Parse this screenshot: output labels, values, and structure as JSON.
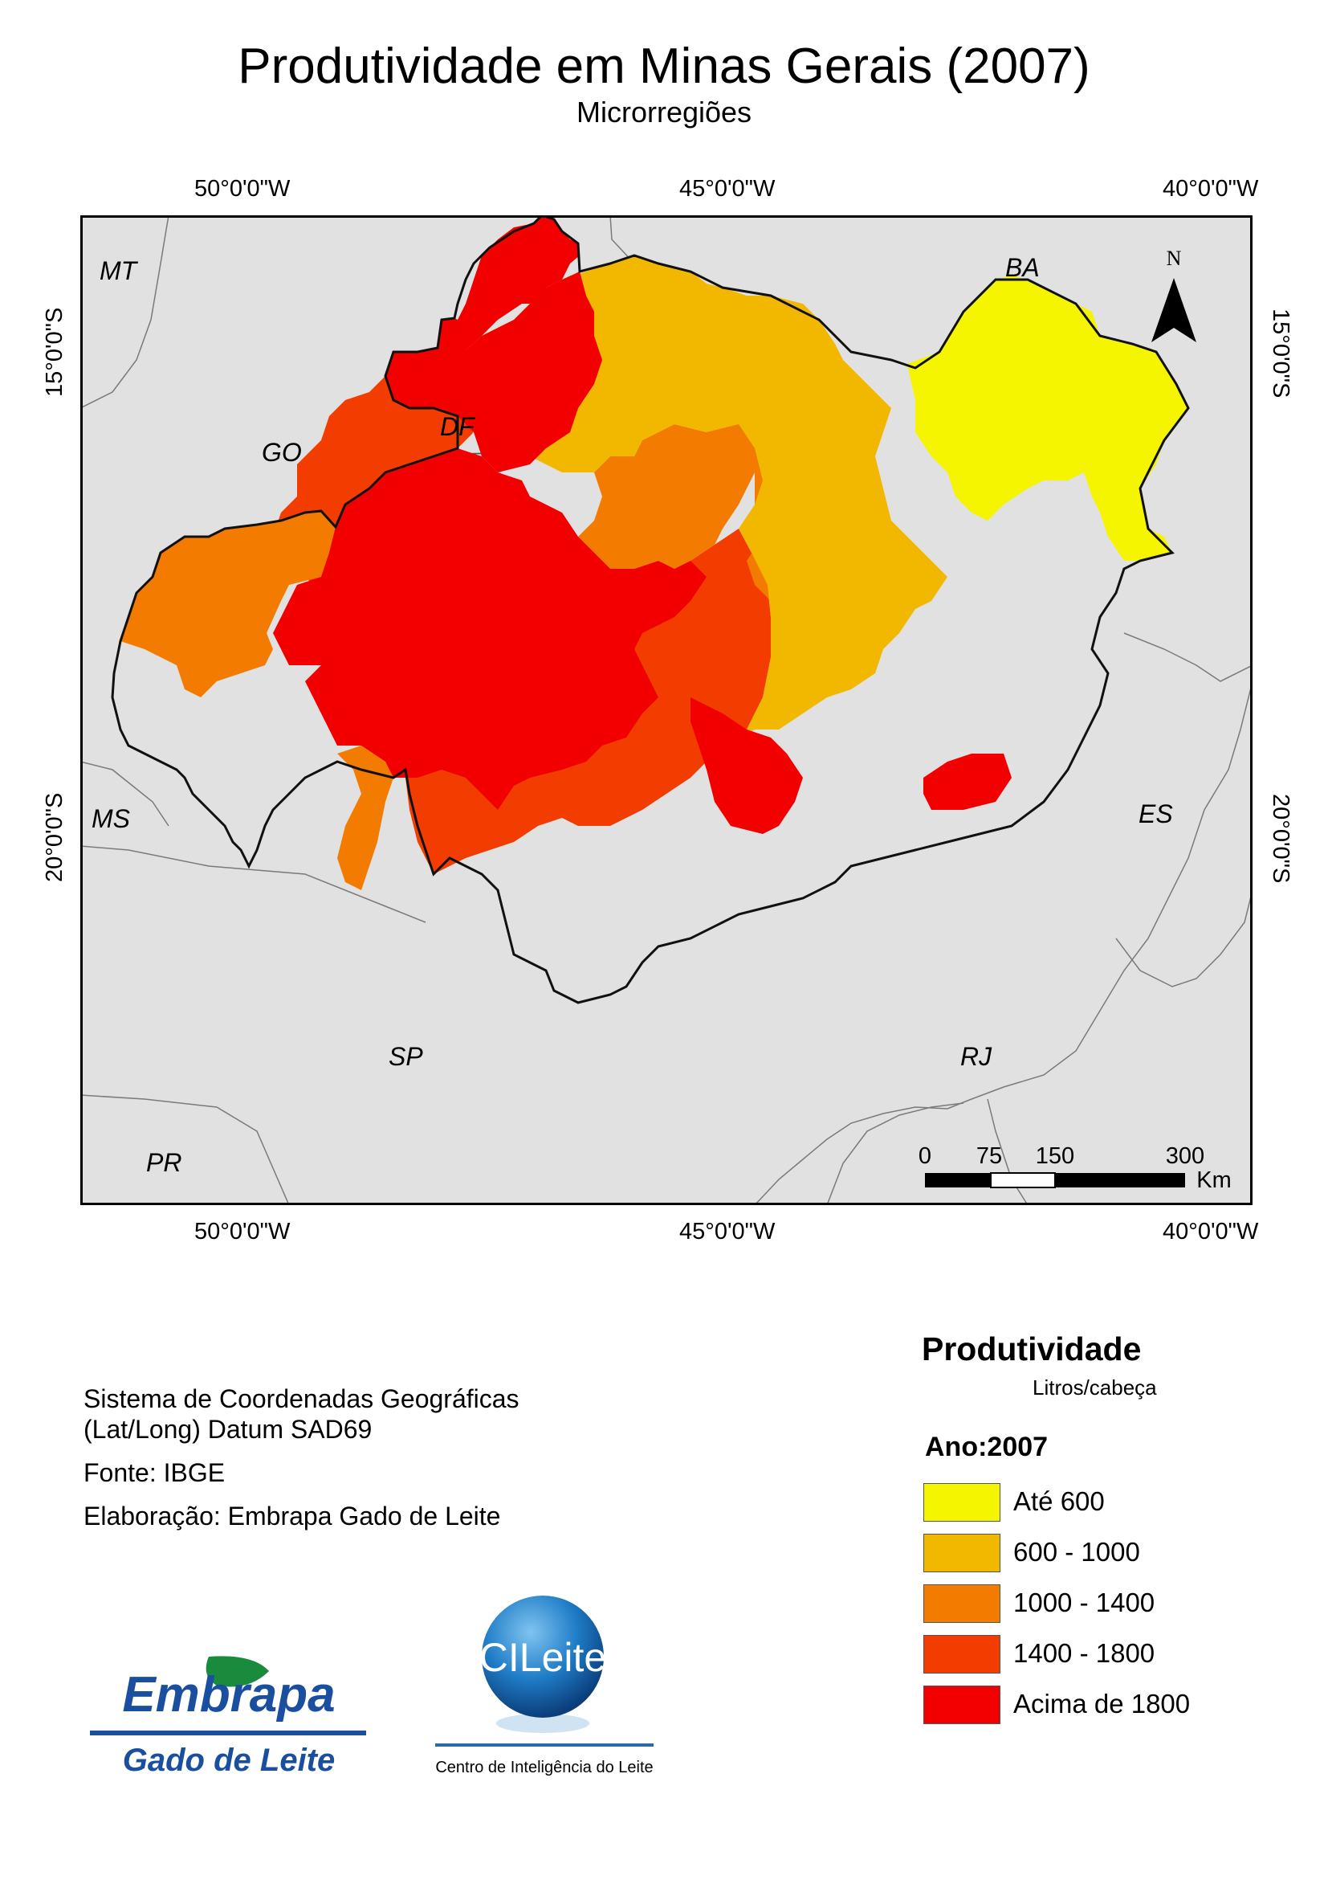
{
  "title": "Produtividade em Minas Gerais (2007)",
  "subtitle": "Microrregiões",
  "grid": {
    "longitudes": [
      "50°0'0\"W",
      "45°0'0\"W",
      "40°0'0\"W"
    ],
    "latitudes": [
      "15°0'0\"S",
      "20°0'0\"S"
    ]
  },
  "states": {
    "mt": "MT",
    "go": "GO",
    "df": "DF",
    "ba": "BA",
    "ms": "MS",
    "es": "ES",
    "sp": "SP",
    "rj": "RJ",
    "pr": "PR"
  },
  "north_label": "N",
  "scalebar": {
    "ticks": [
      "0",
      "75",
      "150",
      "300"
    ],
    "unit": "Km"
  },
  "info": {
    "coords_line1": "Sistema de Coordenadas Geográficas",
    "coords_line2": "(Lat/Long) Datum SAD69",
    "source": "Fonte: IBGE",
    "author": "Elaboração: Embrapa Gado de Leite"
  },
  "legend": {
    "title": "Produtividade",
    "unit": "Litros/cabeça",
    "year": "Ano:2007",
    "classes": [
      {
        "label": "Até 600",
        "color": "#f5f500"
      },
      {
        "label": "600 - 1000",
        "color": "#f2b800"
      },
      {
        "label": "1000 - 1400",
        "color": "#f27b00"
      },
      {
        "label": "1400 - 1800",
        "color": "#f23c00"
      },
      {
        "label": "Acima de 1800",
        "color": "#f20000"
      }
    ]
  },
  "logos": {
    "embrapa_name": "Embrapa",
    "embrapa_unit": "Gado de Leite",
    "cileite_name": "CILeite",
    "cileite_caption": "Centro de Inteligência do Leite"
  },
  "colors": {
    "background_land": "#e1e1e1",
    "state_border": "#7a7a7a",
    "embrapa_blue": "#1a4fa0",
    "embrapa_green": "#1a8a3c"
  }
}
